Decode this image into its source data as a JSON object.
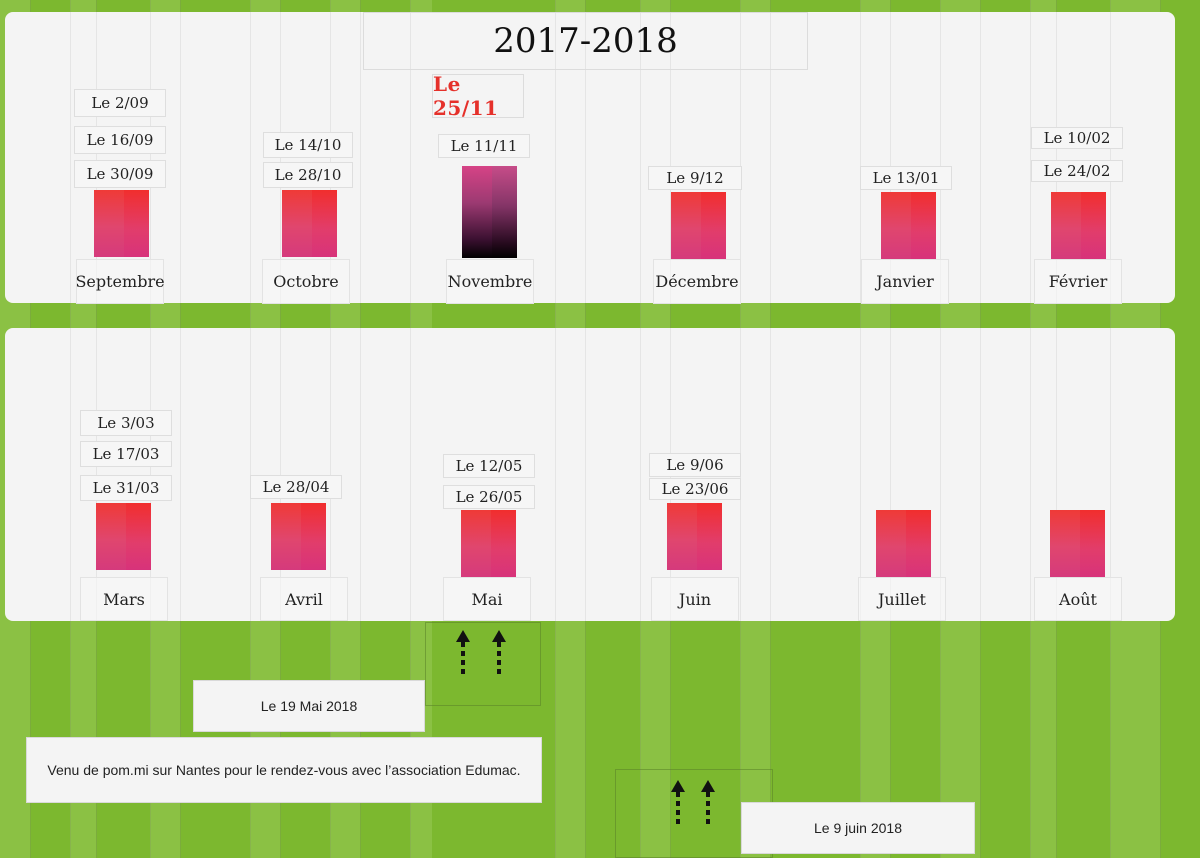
{
  "title": "2017-2018",
  "highlight": "Le 25/11",
  "top_row": [
    {
      "month": "Septembre",
      "dates": [
        "Le 2/09",
        "Le 16/09",
        "Le 30/09"
      ]
    },
    {
      "month": "Octobre",
      "dates": [
        "Le 14/10",
        "Le 28/10"
      ]
    },
    {
      "month": "Novembre",
      "dates": [
        "Le 11/11"
      ]
    },
    {
      "month": "Décembre",
      "dates": [
        "Le 9/12"
      ]
    },
    {
      "month": "Janvier",
      "dates": [
        "Le 13/01"
      ]
    },
    {
      "month": "Février",
      "dates": [
        "Le 10/02",
        "Le 24/02"
      ]
    }
  ],
  "bottom_row": [
    {
      "month": "Mars",
      "dates": [
        "Le 3/03",
        "Le 17/03",
        "Le 31/03"
      ]
    },
    {
      "month": "Avril",
      "dates": [
        "Le 28/04"
      ]
    },
    {
      "month": "Mai",
      "dates": [
        "Le 12/05",
        "Le 26/05"
      ]
    },
    {
      "month": "Juin",
      "dates": [
        "Le 9/06",
        "Le 23/06"
      ]
    },
    {
      "month": "Juillet",
      "dates": []
    },
    {
      "month": "Août",
      "dates": []
    }
  ],
  "notes": {
    "may_date": "Le 19 Mai 2018",
    "may_text": "Venu de pom.mi sur Nantes pour le rendez-vous avec l’association Edumac.",
    "june_date": "Le  9  juin 2018"
  },
  "colors": {
    "background": "#7cb82f",
    "panel": "#f4f4f4",
    "accent_red": "#e5302a",
    "bar_gradient": [
      "#ef3a37",
      "#d53a7c"
    ]
  }
}
